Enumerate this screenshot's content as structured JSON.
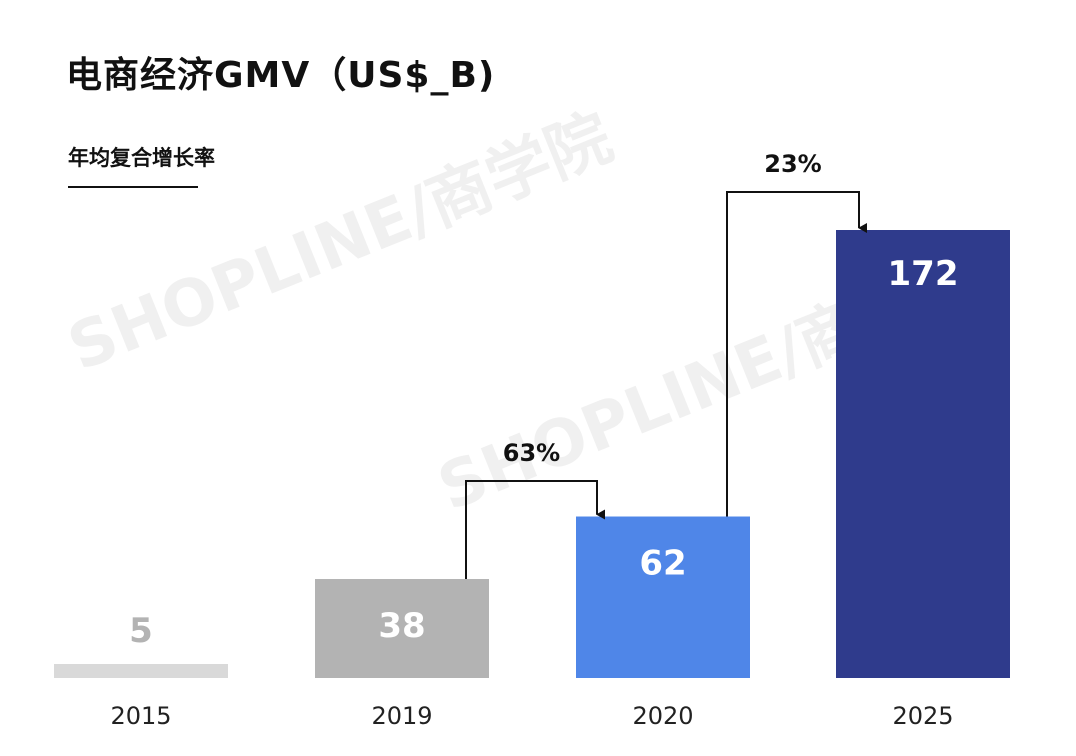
{
  "title": "电商经济GMV（US$_B)",
  "subtitle": "年均复合增长率",
  "watermark": "SHOPLINE/商学院",
  "chart_data": {
    "type": "bar",
    "categories": [
      "2015",
      "2019",
      "2020",
      "2025"
    ],
    "values": [
      5,
      38,
      62,
      172
    ],
    "data_labels": [
      "5",
      "38",
      "62",
      "172"
    ],
    "colors": [
      "#d9d9d9",
      "#b3b3b3",
      "#4f86e8",
      "#2f3b8c"
    ],
    "label_colors": [
      "#b3b3b3",
      "#ffffff",
      "#ffffff",
      "#ffffff"
    ],
    "ylim": [
      0,
      172
    ],
    "growth_annotations": [
      {
        "from": "2019",
        "to": "2020",
        "label": "63%"
      },
      {
        "from": "2020",
        "to": "2025",
        "label": "23%"
      }
    ],
    "title": "电商经济GMV（US$_B)",
    "xlabel": "",
    "ylabel": ""
  }
}
